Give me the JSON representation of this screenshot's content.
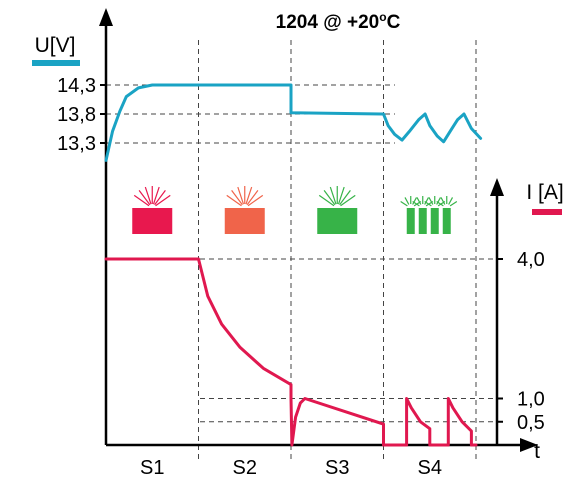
{
  "chart_data": {
    "type": "line",
    "title": "1204 @ +20oC",
    "title_parts": {
      "main": "1204 @ +20",
      "sup": "o",
      "tail": "C"
    },
    "x_axis": {
      "label": "t",
      "categories": [
        "S1",
        "S2",
        "S3",
        "S4"
      ]
    },
    "voltage_axis": {
      "label": "U[V]",
      "ticks": [
        "14,3",
        "13,8",
        "13,3"
      ],
      "tick_values": [
        14.3,
        13.8,
        13.3
      ],
      "color": "#1aa3c4"
    },
    "current_axis": {
      "label": "I [A]",
      "ticks": [
        "4,0",
        "1,0",
        "0,5"
      ],
      "tick_values": [
        4.0,
        1.0,
        0.5
      ],
      "color": "#e0184f"
    },
    "series": [
      {
        "name": "U[V]",
        "color": "#1aa3c4",
        "points": [
          [
            0.0,
            13.0
          ],
          [
            0.07,
            13.5
          ],
          [
            0.15,
            13.85
          ],
          [
            0.22,
            14.1
          ],
          [
            0.35,
            14.25
          ],
          [
            0.5,
            14.3
          ],
          [
            1.0,
            14.3
          ],
          [
            1.0,
            14.3
          ],
          [
            2.0,
            14.3
          ],
          [
            2.0,
            13.82
          ],
          [
            3.0,
            13.8
          ],
          [
            3.0,
            13.8
          ],
          [
            3.05,
            13.6
          ],
          [
            3.12,
            13.45
          ],
          [
            3.2,
            13.35
          ],
          [
            3.28,
            13.5
          ],
          [
            3.38,
            13.7
          ],
          [
            3.45,
            13.8
          ],
          [
            3.5,
            13.6
          ],
          [
            3.58,
            13.42
          ],
          [
            3.65,
            13.32
          ],
          [
            3.72,
            13.5
          ],
          [
            3.8,
            13.7
          ],
          [
            3.87,
            13.8
          ],
          [
            3.95,
            13.55
          ],
          [
            4.05,
            13.38
          ]
        ]
      },
      {
        "name": "I [A]",
        "color": "#e0184f",
        "points": [
          [
            0.0,
            4.0
          ],
          [
            1.0,
            4.0
          ],
          [
            1.0,
            4.0
          ],
          [
            1.1,
            3.2
          ],
          [
            1.25,
            2.6
          ],
          [
            1.45,
            2.1
          ],
          [
            1.7,
            1.65
          ],
          [
            2.0,
            1.3
          ],
          [
            2.0,
            1.0
          ],
          [
            2.01,
            0.0
          ],
          [
            2.05,
            0.6
          ],
          [
            2.1,
            0.9
          ],
          [
            2.15,
            1.0
          ],
          [
            3.0,
            0.45
          ],
          [
            3.0,
            0.0
          ],
          [
            3.25,
            0.0
          ],
          [
            3.25,
            1.0
          ],
          [
            3.3,
            0.8
          ],
          [
            3.4,
            0.5
          ],
          [
            3.5,
            0.35
          ],
          [
            3.5,
            0.0
          ],
          [
            3.7,
            0.0
          ],
          [
            3.7,
            1.0
          ],
          [
            3.75,
            0.8
          ],
          [
            3.85,
            0.5
          ],
          [
            3.95,
            0.3
          ],
          [
            3.95,
            0.0
          ],
          [
            4.0,
            0.0
          ]
        ]
      }
    ],
    "stage_icons": [
      {
        "stage": "S1",
        "color": "#e8184e",
        "type": "single"
      },
      {
        "stage": "S2",
        "color": "#f0644a",
        "type": "single"
      },
      {
        "stage": "S3",
        "color": "#37b348",
        "type": "single"
      },
      {
        "stage": "S4",
        "color": "#37b348",
        "type": "quad"
      }
    ],
    "grid": "dashed stage dividers and value guides"
  }
}
